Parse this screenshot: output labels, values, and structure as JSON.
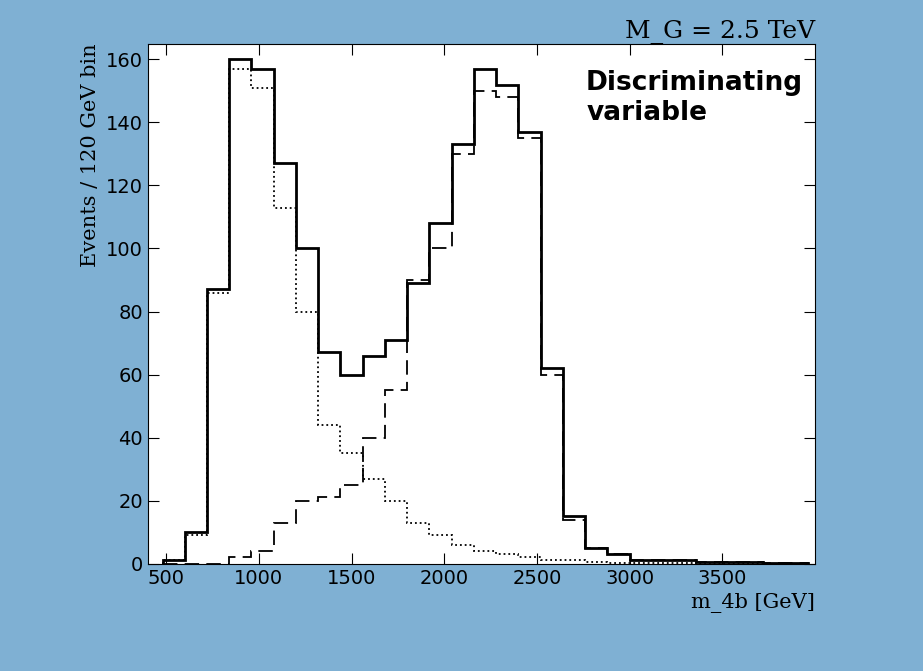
{
  "chart_data": {
    "type": "histogram",
    "title": "M_G = 2.5 TeV",
    "x_label": "m_4b [GeV]",
    "y_label": "Events / 120 GeV bin",
    "annotation": "Discriminating\nvariable",
    "bins": [
      480,
      600,
      720,
      840,
      960,
      1080,
      1200,
      1320,
      1440,
      1560,
      1680,
      1800,
      1920,
      2040,
      2160,
      2280,
      2400,
      2520,
      2640,
      2760,
      2880,
      3000,
      3120,
      3240,
      3360,
      3480,
      3600,
      3720,
      3840,
      3960
    ],
    "series": [
      {
        "color": "#000000",
        "line_style": "solid",
        "values": [
          1,
          10,
          87,
          160,
          157,
          127,
          100,
          67,
          60,
          66,
          71,
          89,
          108,
          133,
          157,
          152,
          137,
          62,
          15,
          5,
          3,
          1,
          1,
          1,
          0.5,
          0.5,
          0.5,
          0.3,
          0.3
        ]
      },
      {
        "color": "#000000",
        "line_style": "dotted",
        "values": [
          1,
          9,
          86,
          157,
          151,
          113,
          80,
          44,
          35,
          27,
          20,
          13,
          9,
          6,
          4,
          3,
          2,
          1,
          1,
          0.5,
          0.3,
          0.2,
          0.1,
          0.1,
          0,
          0,
          0,
          0,
          0
        ]
      },
      {
        "color": "#000000",
        "line_style": "dashed",
        "values": [
          0,
          0,
          0,
          2,
          4,
          13,
          20,
          21,
          25,
          40,
          55,
          90,
          100,
          130,
          150,
          148,
          135,
          60,
          14,
          5,
          3,
          1,
          1,
          1,
          0.5,
          0.5,
          0.5,
          0.3,
          0.3
        ]
      }
    ],
    "xlim": [
      400,
      4000
    ],
    "ylim": [
      0,
      165
    ],
    "xticks": [
      500,
      1000,
      1500,
      2000,
      2500,
      3000,
      3500
    ],
    "yticks": [
      0,
      20,
      40,
      60,
      80,
      100,
      120,
      140,
      160
    ],
    "grid": false
  }
}
